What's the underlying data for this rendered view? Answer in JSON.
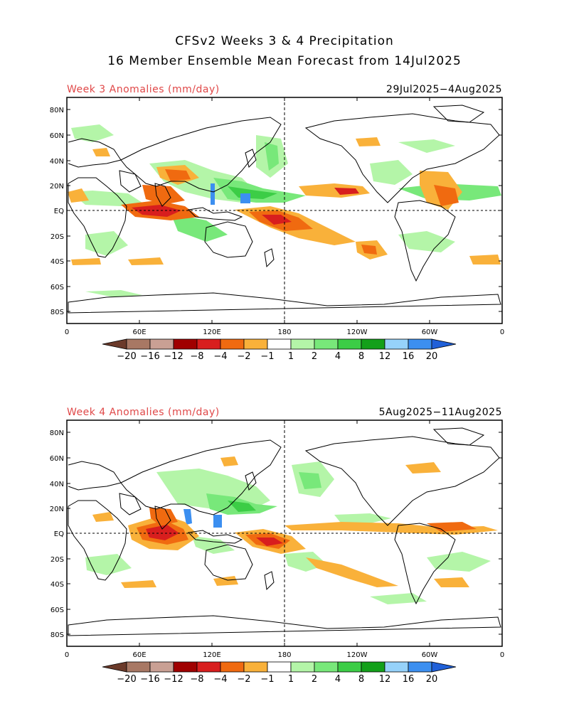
{
  "title_line1": "CFSv2 Weeks 3 & 4 Precipitation",
  "title_line2": "16 Member Ensemble Mean Forecast from 14Jul2025",
  "panels": [
    {
      "label": "Week 3 Anomalies (mm/day)",
      "dates": "29Jul2025−4Aug2025"
    },
    {
      "label": "Week 4 Anomalies (mm/day)",
      "dates": "5Aug2025−11Aug2025"
    }
  ],
  "lat_labels": [
    "80N",
    "60N",
    "40N",
    "20N",
    "EQ",
    "20S",
    "40S",
    "60S",
    "80S"
  ],
  "lon_labels": [
    "0",
    "60E",
    "120E",
    "180",
    "120W",
    "60W",
    "0"
  ],
  "colorbar": {
    "labels": [
      "−20",
      "−16",
      "−12",
      "−8",
      "−4",
      "−2",
      "−1",
      "1",
      "2",
      "4",
      "8",
      "12",
      "16",
      "20"
    ],
    "colors": [
      "#6b3a2a",
      "#a87864",
      "#c9a094",
      "#a00000",
      "#d81e1e",
      "#f06a10",
      "#f9b13a",
      "#ffffff",
      "#b4f5a8",
      "#78e87a",
      "#3ccd46",
      "#13a01a",
      "#96d2fa",
      "#3c8ff0",
      "#2060d8"
    ]
  },
  "anomaly_colors": {
    "dry_light": "#f9b13a",
    "dry_mid": "#f06a10",
    "dry_strong": "#d81e1e",
    "dry_extreme": "#a00000",
    "wet_light": "#b4f5a8",
    "wet_mid": "#78e87a",
    "wet_strong": "#3ccd46",
    "wet_extreme": "#3c8ff0"
  }
}
